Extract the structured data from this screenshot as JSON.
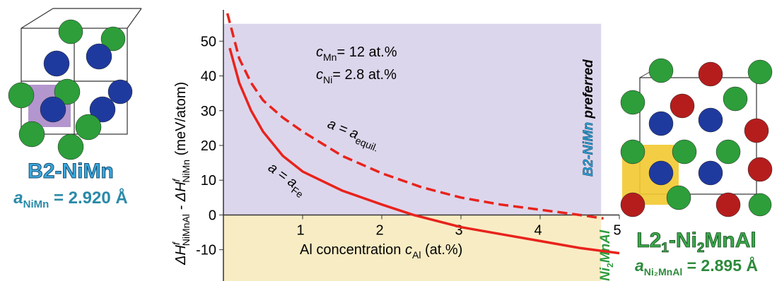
{
  "chart_data": {
    "type": "line",
    "xlim": [
      0,
      5
    ],
    "ylim": [
      -19,
      59
    ],
    "xticks": [
      1,
      2,
      3,
      4,
      5
    ],
    "yticks": [
      -10,
      0,
      10,
      20,
      30,
      40,
      50
    ],
    "x_label": {
      "text": "Al concentration ",
      "var": "c",
      "sub": "Al",
      "unit": " (at.%)"
    },
    "y_label": {
      "t1": "ΔH",
      "sup1": "f",
      "sub1": "NiMnAl",
      "t2": " - ΔH",
      "sup2": "f",
      "sub2": "NiMn",
      "t3": " (meV/atom)"
    },
    "annotations": [
      {
        "var": "c",
        "sub": "Mn",
        "rest": "= 12 at.%"
      },
      {
        "var": "c",
        "sub": "Ni",
        "rest": "= 2.8 at.%"
      }
    ],
    "regions": [
      {
        "xlim": [
          0,
          4.77
        ],
        "ylim": [
          0,
          55
        ],
        "color": "#dcd6ec"
      },
      {
        "xlim": [
          0,
          4.77
        ],
        "ylim": [
          -19,
          0
        ],
        "color": "#f8ecc4"
      }
    ],
    "region_labels": {
      "top": {
        "name": "B2-NiMn",
        "rest": " preferred"
      },
      "bottom": {
        "t1": "Ni",
        "sub": "2",
        "t2": "MnAl"
      }
    },
    "series": [
      {
        "name": "a = a",
        "name_sub": "equil.",
        "color": "#e8231c",
        "dash": true,
        "x": [
          0.05,
          0.2,
          0.35,
          0.5,
          0.75,
          1,
          1.5,
          2,
          2.5,
          3,
          3.5,
          4,
          4.5,
          4.8
        ],
        "values": [
          58,
          45,
          38,
          33,
          28,
          24,
          17,
          12,
          8,
          5,
          3,
          1.5,
          0,
          -1
        ]
      },
      {
        "name": "a = a",
        "name_sub": "Fe",
        "color": "#e8231c",
        "dash": false,
        "x": [
          0.08,
          0.2,
          0.35,
          0.5,
          0.75,
          1,
          1.5,
          2,
          2.4,
          3,
          3.5,
          4,
          4.5,
          5
        ],
        "values": [
          48,
          38,
          30,
          24,
          17,
          12.5,
          7,
          3,
          0,
          -3.5,
          -5.5,
          -7.5,
          -9.5,
          -11
        ]
      }
    ]
  },
  "structures": {
    "left": {
      "name": "B2-NiMn",
      "param": "a",
      "param_sub": "NiMn",
      "value": " = 2.920 Å"
    },
    "right": {
      "n1": "L2",
      "n1_sub": "1",
      "n2": "-Ni",
      "n2_sub": "2",
      "n3": "MnAl",
      "param": "a",
      "param_sub": "Ni₂MnAl",
      "value": " = 2.895 Å"
    }
  }
}
